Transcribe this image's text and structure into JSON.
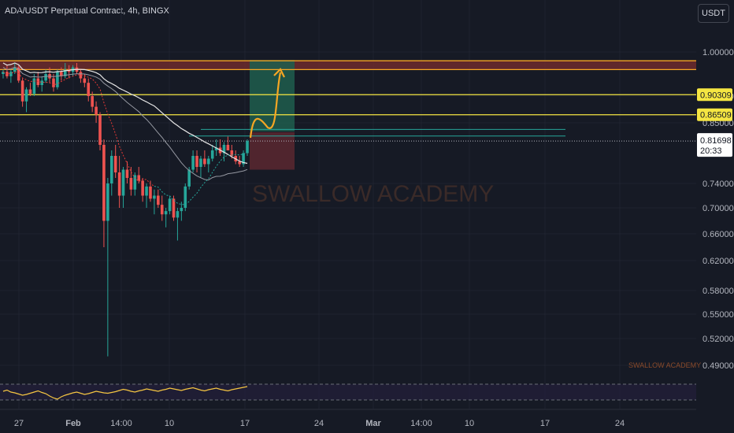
{
  "header": {
    "title": "ADA/USDT Perpetual Contract, 4h, BINGX",
    "currency_button": "USDT"
  },
  "watermark": "SWALLOW ACADEMY",
  "watermark_small": "SWALLOW ACADEMY",
  "colors": {
    "background": "#161a25",
    "up_candle": "#26a69a",
    "down_candle": "#ef5350",
    "yellow_line": "#f5e642",
    "orange_arrow": "#f5a623",
    "zone_fill": "#7a2d2d",
    "target_fill": "#1e5e4e",
    "stop_fill": "#5a2830",
    "ma_white": "#e6e6e6",
    "ma_grey": "#9598a1",
    "ma_red": "#e53935",
    "ma_green": "#26a69a",
    "rsi_line": "#f5c542",
    "rsi_bg": "#241f3a"
  },
  "chart_data": {
    "type": "candlestick",
    "title": "ADA/USDT Perpetual Contract, 4h, BINGX",
    "y_axis_ticks": [
      "1.00000",
      "0.90000",
      "0.85000",
      "0.74000",
      "0.70000",
      "0.66000",
      "0.62000",
      "0.58000",
      "0.55000",
      "0.52000",
      "0.49000"
    ],
    "x_axis_ticks": [
      "27",
      "Feb",
      "14:00",
      "10",
      "17",
      "24",
      "Mar",
      "14:00",
      "10",
      "17",
      "24"
    ],
    "horizontal_levels": [
      {
        "value": 0.98,
        "label": "",
        "color": "#f5a623"
      },
      {
        "value": 0.96,
        "label": "",
        "color": "#f5a623"
      },
      {
        "value": 0.90309,
        "label": "0.90309",
        "color": "#f5e642"
      },
      {
        "value": 0.86509,
        "label": "0.86509",
        "color": "#f5e642"
      }
    ],
    "resistance_zone": [
      0.96,
      0.98
    ],
    "current_price": {
      "value": "0.81698",
      "countdown": "20:33"
    },
    "position": {
      "entry": 0.833,
      "target": 0.98,
      "stop": 0.765
    },
    "candles": [
      [
        0.95,
        0.96,
        0.94,
        0.955
      ],
      [
        0.955,
        0.97,
        0.94,
        0.945
      ],
      [
        0.945,
        0.96,
        0.93,
        0.955
      ],
      [
        0.955,
        0.975,
        0.95,
        0.965
      ],
      [
        0.965,
        0.97,
        0.93,
        0.935
      ],
      [
        0.935,
        0.94,
        0.88,
        0.89
      ],
      [
        0.89,
        0.92,
        0.87,
        0.915
      ],
      [
        0.915,
        0.93,
        0.9,
        0.905
      ],
      [
        0.905,
        0.95,
        0.9,
        0.94
      ],
      [
        0.94,
        0.955,
        0.92,
        0.925
      ],
      [
        0.925,
        0.945,
        0.91,
        0.935
      ],
      [
        0.935,
        0.96,
        0.93,
        0.95
      ],
      [
        0.95,
        0.965,
        0.93,
        0.94
      ],
      [
        0.94,
        0.95,
        0.91,
        0.92
      ],
      [
        0.92,
        0.96,
        0.915,
        0.955
      ],
      [
        0.955,
        0.965,
        0.935,
        0.945
      ],
      [
        0.945,
        0.975,
        0.94,
        0.96
      ],
      [
        0.96,
        0.97,
        0.94,
        0.955
      ],
      [
        0.955,
        0.97,
        0.945,
        0.965
      ],
      [
        0.965,
        0.975,
        0.95,
        0.955
      ],
      [
        0.955,
        0.96,
        0.93,
        0.94
      ],
      [
        0.94,
        0.95,
        0.92,
        0.93
      ],
      [
        0.93,
        0.94,
        0.89,
        0.9
      ],
      [
        0.9,
        0.91,
        0.87,
        0.88
      ],
      [
        0.88,
        0.89,
        0.85,
        0.865
      ],
      [
        0.865,
        0.87,
        0.8,
        0.81
      ],
      [
        0.81,
        0.82,
        0.64,
        0.68
      ],
      [
        0.68,
        0.75,
        0.5,
        0.74
      ],
      [
        0.74,
        0.8,
        0.72,
        0.79
      ],
      [
        0.79,
        0.81,
        0.75,
        0.76
      ],
      [
        0.76,
        0.79,
        0.7,
        0.72
      ],
      [
        0.72,
        0.77,
        0.7,
        0.765
      ],
      [
        0.765,
        0.78,
        0.74,
        0.75
      ],
      [
        0.75,
        0.77,
        0.72,
        0.73
      ],
      [
        0.73,
        0.76,
        0.72,
        0.755
      ],
      [
        0.755,
        0.77,
        0.74,
        0.745
      ],
      [
        0.745,
        0.75,
        0.71,
        0.72
      ],
      [
        0.72,
        0.74,
        0.7,
        0.735
      ],
      [
        0.735,
        0.745,
        0.71,
        0.715
      ],
      [
        0.715,
        0.73,
        0.69,
        0.72
      ],
      [
        0.72,
        0.73,
        0.7,
        0.705
      ],
      [
        0.705,
        0.72,
        0.68,
        0.69
      ],
      [
        0.69,
        0.7,
        0.67,
        0.695
      ],
      [
        0.695,
        0.72,
        0.69,
        0.715
      ],
      [
        0.715,
        0.72,
        0.68,
        0.685
      ],
      [
        0.685,
        0.7,
        0.65,
        0.695
      ],
      [
        0.695,
        0.71,
        0.68,
        0.7
      ],
      [
        0.7,
        0.74,
        0.695,
        0.735
      ],
      [
        0.735,
        0.77,
        0.73,
        0.765
      ],
      [
        0.765,
        0.8,
        0.76,
        0.79
      ],
      [
        0.79,
        0.8,
        0.76,
        0.77
      ],
      [
        0.77,
        0.79,
        0.75,
        0.785
      ],
      [
        0.785,
        0.8,
        0.77,
        0.775
      ],
      [
        0.775,
        0.79,
        0.76,
        0.785
      ],
      [
        0.785,
        0.81,
        0.78,
        0.8
      ],
      [
        0.8,
        0.82,
        0.79,
        0.805
      ],
      [
        0.805,
        0.82,
        0.79,
        0.795
      ],
      [
        0.795,
        0.815,
        0.78,
        0.81
      ],
      [
        0.81,
        0.825,
        0.8,
        0.8
      ],
      [
        0.8,
        0.81,
        0.785,
        0.79
      ],
      [
        0.79,
        0.8,
        0.775,
        0.78
      ],
      [
        0.78,
        0.79,
        0.77,
        0.775
      ],
      [
        0.775,
        0.8,
        0.77,
        0.795
      ],
      [
        0.795,
        0.82,
        0.79,
        0.817
      ]
    ],
    "rsi": [
      52,
      55,
      50,
      48,
      45,
      42,
      44,
      47,
      50,
      53,
      49,
      46,
      40,
      35,
      32,
      38,
      42,
      45,
      48,
      50,
      47,
      44,
      46,
      49,
      52,
      50,
      48,
      47,
      49,
      51,
      54,
      57,
      55,
      52,
      50,
      53,
      55,
      58,
      56,
      54,
      52,
      55,
      57,
      60,
      58,
      56,
      54,
      57,
      59,
      61,
      58,
      55,
      53,
      56,
      58,
      60,
      57,
      55,
      53,
      56,
      58,
      60,
      62,
      64
    ],
    "time_index_note": ""
  }
}
